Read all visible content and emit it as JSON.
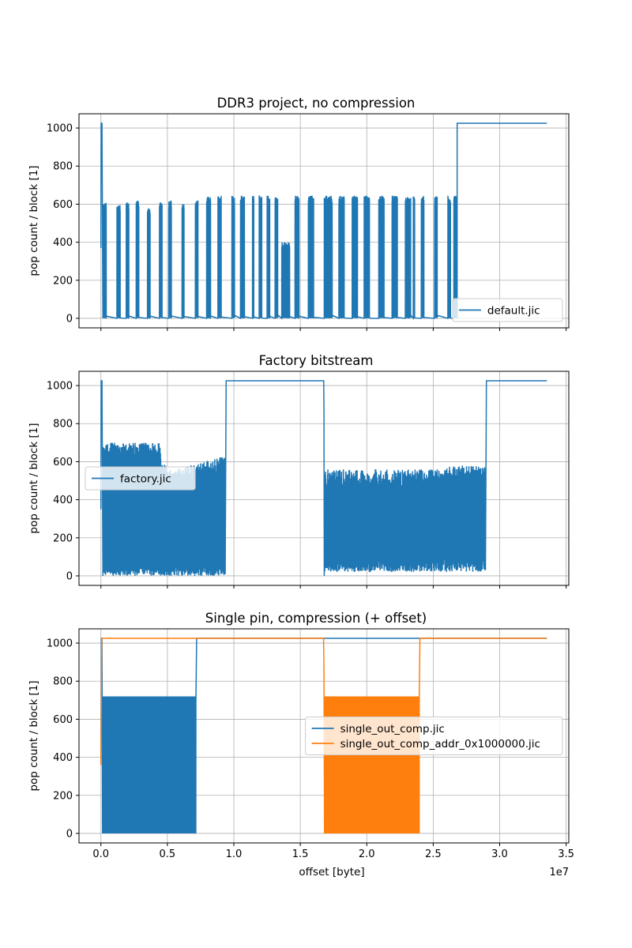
{
  "chart_data": [
    {
      "type": "line",
      "title": "DDR3 project, no compression",
      "xlabel": "",
      "ylabel": "pop count / block [1]",
      "xlim": [
        -1650000,
        35200000
      ],
      "ylim": [
        -50,
        1075
      ],
      "xticks": [
        0,
        5000000,
        10000000,
        15000000,
        20000000,
        25000000,
        30000000,
        35000000
      ],
      "xtick_labels": [],
      "yticks": [
        0,
        200,
        400,
        600,
        800,
        1000
      ],
      "ytick_labels": [
        "0",
        "200",
        "400",
        "600",
        "800",
        "1000"
      ],
      "grid": true,
      "legend_position": "lower-right",
      "series": [
        {
          "name": "default.jic",
          "color": "#1f77b4",
          "pattern": "ddr3",
          "points": [
            [
              0,
              370
            ],
            [
              15000,
              1025
            ],
            [
              80000,
              1025
            ],
            [
              150000,
              0
            ],
            [
              26800000,
              0
            ],
            [
              26800000,
              1025
            ],
            [
              33550000,
              1025
            ]
          ]
        }
      ]
    },
    {
      "type": "line",
      "title": "Factory bitstream",
      "xlabel": "",
      "ylabel": "pop count / block [1]",
      "xlim": [
        -1650000,
        35200000
      ],
      "ylim": [
        -50,
        1075
      ],
      "xticks": [
        0,
        5000000,
        10000000,
        15000000,
        20000000,
        25000000,
        30000000,
        35000000
      ],
      "xtick_labels": [],
      "yticks": [
        0,
        200,
        400,
        600,
        800,
        1000
      ],
      "ytick_labels": [
        "0",
        "200",
        "400",
        "600",
        "800",
        "1000"
      ],
      "grid": true,
      "legend_position": "center-left",
      "series": [
        {
          "name": "factory.jic",
          "color": "#1f77b4",
          "pattern": "factory",
          "points": [
            [
              0,
              350
            ],
            [
              15000,
              1025
            ],
            [
              80000,
              1025
            ],
            [
              150000,
              0
            ],
            [
              9350000,
              30
            ],
            [
              9420000,
              1025
            ],
            [
              16760000,
              1025
            ],
            [
              16780000,
              860
            ],
            [
              16800000,
              0
            ],
            [
              28930000,
              30
            ],
            [
              29000000,
              1025
            ],
            [
              33550000,
              1025
            ]
          ]
        }
      ]
    },
    {
      "type": "line",
      "title": "Single pin, compression (+ offset)",
      "xlabel": "offset [byte]",
      "ylabel": "pop count / block [1]",
      "xlim": [
        -1650000,
        35200000
      ],
      "ylim": [
        -50,
        1075
      ],
      "xticks": [
        0,
        5000000,
        10000000,
        15000000,
        20000000,
        25000000,
        30000000,
        35000000
      ],
      "xtick_labels": [
        "0.0",
        "0.5",
        "1.0",
        "1.5",
        "2.0",
        "2.5",
        "3.0",
        "3.5"
      ],
      "x_offset_label": "1e7",
      "yticks": [
        0,
        200,
        400,
        600,
        800,
        1000
      ],
      "ytick_labels": [
        "0",
        "200",
        "400",
        "600",
        "800",
        "1000"
      ],
      "grid": true,
      "legend_position": "center-right",
      "series": [
        {
          "name": "single_out_comp.jic",
          "color": "#1f77b4",
          "pattern": "comp_a",
          "points": [
            [
              0,
              370
            ],
            [
              30000,
              1025
            ],
            [
              80000,
              1025
            ],
            [
              120000,
              0
            ],
            [
              7150000,
              720
            ],
            [
              7200000,
              1025
            ],
            [
              33550000,
              1025
            ]
          ]
        },
        {
          "name": "single_out_comp_addr_0x1000000.jic",
          "color": "#ff7f0e",
          "pattern": "comp_b",
          "points": [
            [
              0,
              360
            ],
            [
              60000,
              1025
            ],
            [
              16750000,
              1025
            ],
            [
              16780000,
              860
            ],
            [
              16820000,
              0
            ],
            [
              23950000,
              720
            ],
            [
              24000000,
              1025
            ],
            [
              33550000,
              1025
            ]
          ]
        }
      ]
    }
  ]
}
